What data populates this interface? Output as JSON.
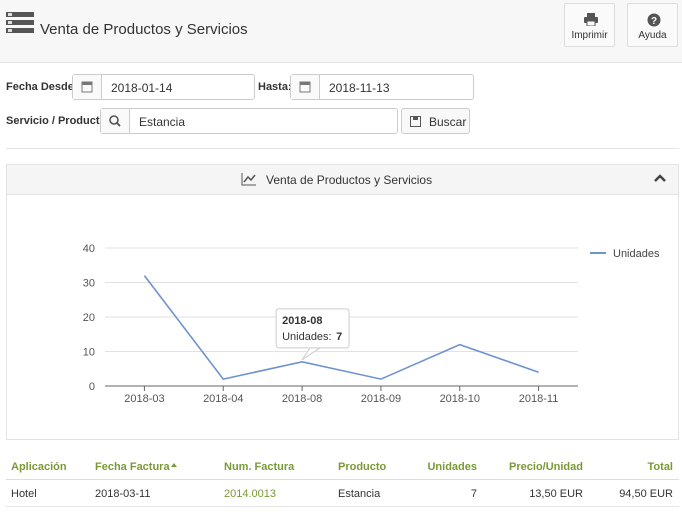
{
  "header": {
    "title": "Venta de Productos y Servicios",
    "buttons": [
      "Imprimir",
      "Ayuda"
    ]
  },
  "form": {
    "date_from_label": "Fecha Desde:",
    "date_from": "2018-01-14",
    "date_to_label": "Hasta:",
    "date_to": "2018-11-13",
    "product_label": "Servicio / Producto:",
    "product": "Estancia",
    "search_button": "Buscar"
  },
  "chart_data": {
    "type": "line",
    "title": "Venta de Productos y Servicios",
    "categories": [
      "2018-03",
      "2018-04",
      "2018-08",
      "2018-09",
      "2018-10",
      "2018-11"
    ],
    "series": [
      {
        "name": "Unidades",
        "color": "#6f93cf",
        "values": [
          32,
          2,
          7,
          2,
          12,
          4
        ]
      }
    ],
    "ylim": [
      0,
      40
    ],
    "yticks": [
      0,
      10,
      20,
      30,
      40
    ],
    "grid": true,
    "legend": "right",
    "tooltip": {
      "label": "Unidades:"
    }
  },
  "table": {
    "headers": [
      "Aplicación",
      "Fecha Factura",
      "Num. Factura",
      "Producto",
      "Unidades",
      "Precio/Unidad",
      "Total"
    ],
    "rows": [
      [
        "Hotel",
        "2018-03-11",
        "2014.0013",
        "Estancia",
        "7",
        "13,50 EUR",
        "94,50 EUR"
      ]
    ]
  }
}
